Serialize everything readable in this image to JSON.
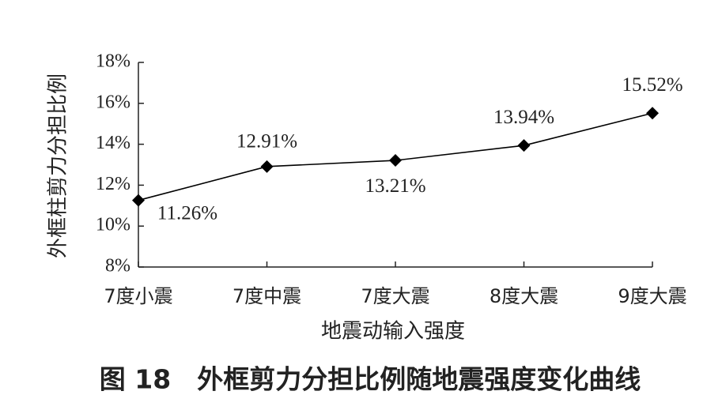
{
  "chart_data": {
    "type": "line",
    "title": "图 18　外框剪力分担比例随地震强度变化曲线",
    "x_label": "地震动输入强度",
    "y_label": "外框柱剪力分担比例",
    "categories": [
      "7度小震",
      "7度中震",
      "7度大震",
      "8度大震",
      "9度大震"
    ],
    "values": [
      11.26,
      12.91,
      13.21,
      13.94,
      15.52
    ],
    "value_labels": [
      "11.26%",
      "12.91%",
      "13.21%",
      "13.94%",
      "15.52%"
    ],
    "color": "#000000",
    "ylim": [
      8,
      18
    ],
    "yticks": [
      {
        "value": 8,
        "label": "8%"
      },
      {
        "value": 10,
        "label": "10%"
      },
      {
        "value": 12,
        "label": "12%"
      },
      {
        "value": 14,
        "label": "14%"
      },
      {
        "value": 16,
        "label": "16%"
      },
      {
        "value": 18,
        "label": "18%"
      }
    ]
  }
}
